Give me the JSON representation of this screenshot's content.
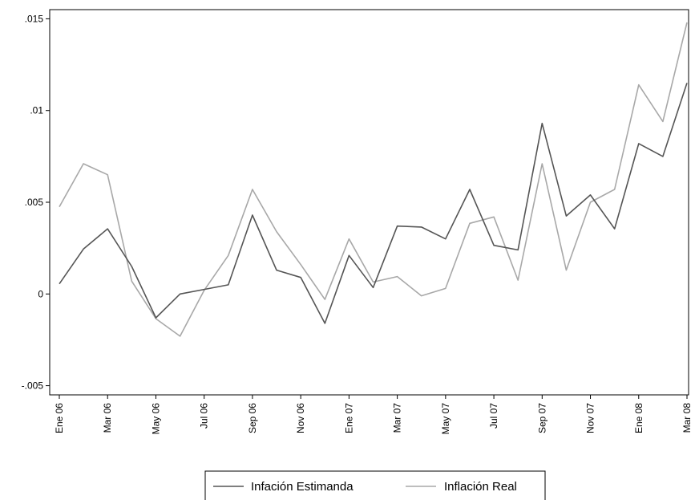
{
  "chart_data": {
    "type": "line",
    "title": "",
    "xlabel": "",
    "ylabel": "",
    "x": [
      "Ene 06",
      "Feb 06",
      "Mar 06",
      "Abr 06",
      "May 06",
      "Jun 06",
      "Jul 06",
      "Ago 06",
      "Sep 06",
      "Oct 06",
      "Nov 06",
      "Dic 06",
      "Ene 07",
      "Feb 07",
      "Mar 07",
      "Abr 07",
      "May 07",
      "Jun 07",
      "Jul 07",
      "Ago 07",
      "Sep 07",
      "Oct 07",
      "Nov 07",
      "Dic 07",
      "Ene 08",
      "Feb 08",
      "Mar 08"
    ],
    "x_tick_labels": [
      "Ene 06",
      "Mar 06",
      "May 06",
      "Jul 06",
      "Sep 06",
      "Nov 06",
      "Ene 07",
      "Mar 07",
      "May 07",
      "Jul 07",
      "Sep 07",
      "Nov 07",
      "Ene 08",
      "Mar 08"
    ],
    "x_tick_every": 2,
    "ylim": [
      -0.0055,
      0.0155
    ],
    "y_ticks": [
      -0.005,
      0,
      0.005,
      0.01,
      0.015
    ],
    "y_tick_labels": [
      "-.005",
      "0",
      ".005",
      ".01",
      ".015"
    ],
    "grid": false,
    "legend_position": "bottom",
    "series": [
      {
        "name": "Infación Estimanda",
        "color": "#555555",
        "values": [
          0.00055,
          0.00245,
          0.00355,
          0.0015,
          -0.0013,
          0.0,
          0.00025,
          0.0005,
          0.0043,
          0.0013,
          0.0009,
          -0.0016,
          0.0021,
          0.00035,
          0.0037,
          0.00365,
          0.003,
          0.0057,
          0.00265,
          0.0024,
          0.0093,
          0.00425,
          0.0054,
          0.00355,
          0.0082,
          0.0075,
          0.0115
        ]
      },
      {
        "name": "Inflación Real",
        "color": "#a8a8a8",
        "values": [
          0.00475,
          0.0071,
          0.0065,
          0.0007,
          -0.00135,
          -0.0023,
          0.0002,
          0.0021,
          0.0057,
          0.0034,
          0.0016,
          -0.0003,
          0.003,
          0.00065,
          0.00095,
          -0.0001,
          0.0003,
          0.00385,
          0.0042,
          0.00075,
          0.0071,
          0.0013,
          0.005,
          0.0057,
          0.0114,
          0.0094,
          0.0148
        ]
      }
    ]
  }
}
